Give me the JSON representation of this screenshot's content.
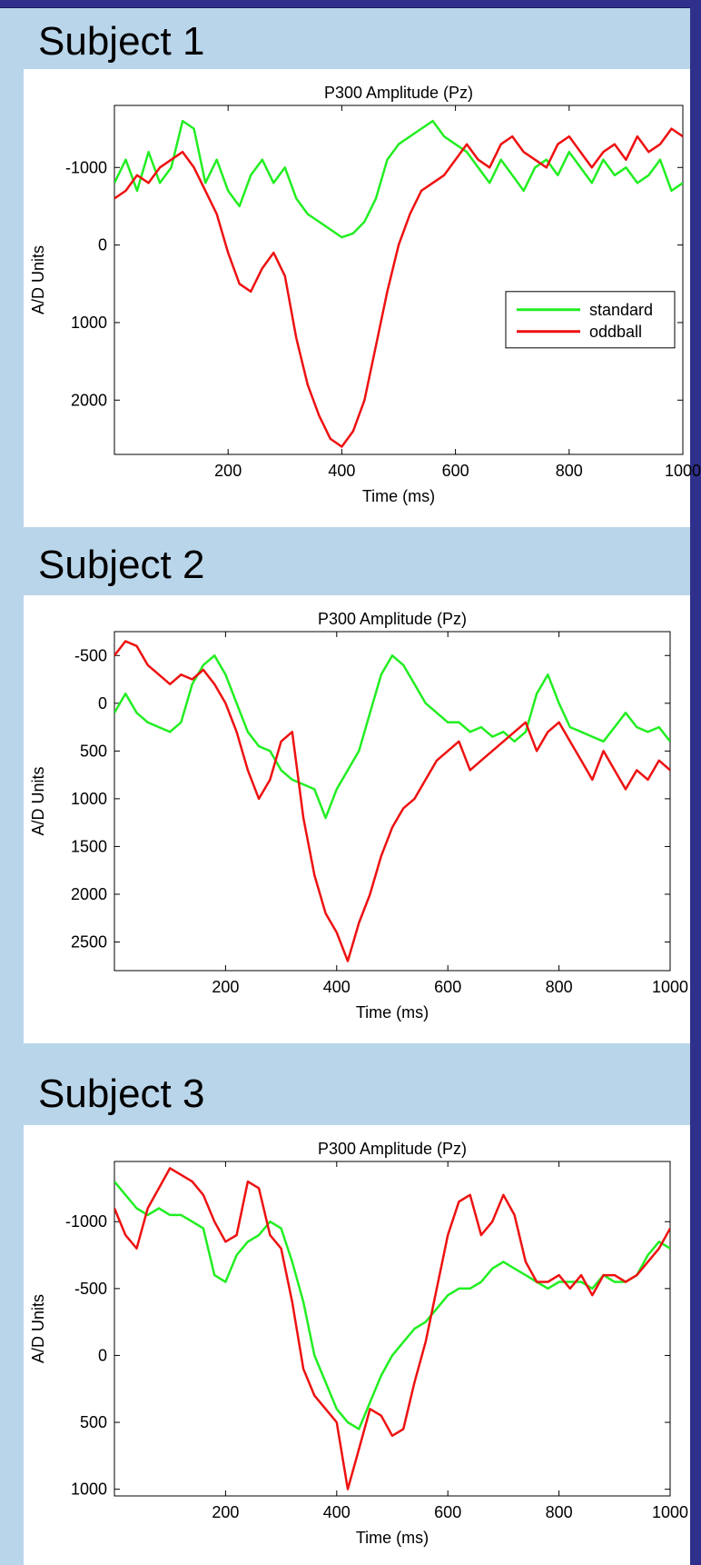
{
  "colors": {
    "standard": "#22ee22",
    "oddball": "#ee1111",
    "banner": "#b9d5ea",
    "frame": "#2f2f8c"
  },
  "legend": {
    "standard": "standard",
    "oddball": "oddball"
  },
  "chart_data": [
    {
      "type": "line",
      "subject": "Subject 1",
      "title": "P300 Amplitude (Pz)",
      "xlabel": "Time (ms)",
      "ylabel": "A/D Units",
      "xlim": [
        0,
        1000
      ],
      "ylim": [
        -1800,
        2700
      ],
      "y_reversed": true,
      "xticks": [
        200,
        400,
        600,
        800,
        1000
      ],
      "yticks": [
        -1000,
        0,
        1000,
        2000
      ],
      "legend": true,
      "legend_position": "right",
      "x": [
        0,
        20,
        40,
        60,
        80,
        100,
        120,
        140,
        160,
        180,
        200,
        220,
        240,
        260,
        280,
        300,
        320,
        340,
        360,
        380,
        400,
        420,
        440,
        460,
        480,
        500,
        520,
        540,
        560,
        580,
        600,
        620,
        640,
        660,
        680,
        700,
        720,
        740,
        760,
        780,
        800,
        820,
        840,
        860,
        880,
        900,
        920,
        940,
        960,
        980,
        1000
      ],
      "series": [
        {
          "name": "standard",
          "values": [
            -800,
            -1100,
            -700,
            -1200,
            -800,
            -1000,
            -1600,
            -1500,
            -800,
            -1100,
            -700,
            -500,
            -900,
            -1100,
            -800,
            -1000,
            -600,
            -400,
            -300,
            -200,
            -100,
            -150,
            -300,
            -600,
            -1100,
            -1300,
            -1400,
            -1500,
            -1600,
            -1400,
            -1300,
            -1200,
            -1000,
            -800,
            -1100,
            -900,
            -700,
            -1000,
            -1100,
            -900,
            -1200,
            -1000,
            -800,
            -1100,
            -900,
            -1000,
            -800,
            -900,
            -1100,
            -700,
            -800
          ]
        },
        {
          "name": "oddball",
          "values": [
            -600,
            -700,
            -900,
            -800,
            -1000,
            -1100,
            -1200,
            -1000,
            -700,
            -400,
            100,
            500,
            600,
            300,
            100,
            400,
            1200,
            1800,
            2200,
            2500,
            2600,
            2400,
            2000,
            1300,
            600,
            0,
            -400,
            -700,
            -800,
            -900,
            -1100,
            -1300,
            -1100,
            -1000,
            -1300,
            -1400,
            -1200,
            -1100,
            -1000,
            -1300,
            -1400,
            -1200,
            -1000,
            -1200,
            -1300,
            -1100,
            -1400,
            -1200,
            -1300,
            -1500,
            -1400
          ]
        }
      ]
    },
    {
      "type": "line",
      "subject": "Subject 2",
      "title": "P300 Amplitude (Pz)",
      "xlabel": "Time (ms)",
      "ylabel": "A/D Units",
      "xlim": [
        0,
        1000
      ],
      "ylim": [
        -750,
        2800
      ],
      "y_reversed": true,
      "xticks": [
        200,
        400,
        600,
        800,
        1000
      ],
      "yticks": [
        -500,
        0,
        500,
        1000,
        1500,
        2000,
        2500
      ],
      "legend": false,
      "x": [
        0,
        20,
        40,
        60,
        80,
        100,
        120,
        140,
        160,
        180,
        200,
        220,
        240,
        260,
        280,
        300,
        320,
        340,
        360,
        380,
        400,
        420,
        440,
        460,
        480,
        500,
        520,
        540,
        560,
        580,
        600,
        620,
        640,
        660,
        680,
        700,
        720,
        740,
        760,
        780,
        800,
        820,
        840,
        860,
        880,
        900,
        920,
        940,
        960,
        980,
        1000
      ],
      "series": [
        {
          "name": "standard",
          "values": [
            100,
            -100,
            100,
            200,
            250,
            300,
            200,
            -200,
            -400,
            -500,
            -300,
            0,
            300,
            450,
            500,
            700,
            800,
            850,
            900,
            1200,
            900,
            700,
            500,
            100,
            -300,
            -500,
            -400,
            -200,
            0,
            100,
            200,
            200,
            300,
            250,
            350,
            300,
            400,
            300,
            -100,
            -300,
            0,
            250,
            300,
            350,
            400,
            250,
            100,
            250,
            300,
            250,
            400
          ]
        },
        {
          "name": "oddball",
          "values": [
            -500,
            -650,
            -600,
            -400,
            -300,
            -200,
            -300,
            -250,
            -350,
            -200,
            0,
            300,
            700,
            1000,
            800,
            400,
            300,
            1200,
            1800,
            2200,
            2400,
            2700,
            2300,
            2000,
            1600,
            1300,
            1100,
            1000,
            800,
            600,
            500,
            400,
            700,
            600,
            500,
            400,
            300,
            200,
            500,
            300,
            200,
            400,
            600,
            800,
            500,
            700,
            900,
            700,
            800,
            600,
            700
          ]
        }
      ]
    },
    {
      "type": "line",
      "subject": "Subject 3",
      "title": "P300 Amplitude (Pz)",
      "xlabel": "Time (ms)",
      "ylabel": "A/D Units",
      "xlim": [
        0,
        1000
      ],
      "ylim": [
        -1450,
        1050
      ],
      "y_reversed": true,
      "xticks": [
        200,
        400,
        600,
        800,
        1000
      ],
      "yticks": [
        -1000,
        -500,
        0,
        500,
        1000
      ],
      "legend": false,
      "x": [
        0,
        20,
        40,
        60,
        80,
        100,
        120,
        140,
        160,
        180,
        200,
        220,
        240,
        260,
        280,
        300,
        320,
        340,
        360,
        380,
        400,
        420,
        440,
        460,
        480,
        500,
        520,
        540,
        560,
        580,
        600,
        620,
        640,
        660,
        680,
        700,
        720,
        740,
        760,
        780,
        800,
        820,
        840,
        860,
        880,
        900,
        920,
        940,
        960,
        980,
        1000
      ],
      "series": [
        {
          "name": "standard",
          "values": [
            -1300,
            -1200,
            -1100,
            -1050,
            -1100,
            -1050,
            -1050,
            -1000,
            -950,
            -600,
            -550,
            -750,
            -850,
            -900,
            -1000,
            -950,
            -700,
            -400,
            0,
            200,
            400,
            500,
            550,
            350,
            150,
            0,
            -100,
            -200,
            -250,
            -350,
            -450,
            -500,
            -500,
            -550,
            -650,
            -700,
            -650,
            -600,
            -550,
            -500,
            -550,
            -550,
            -550,
            -500,
            -600,
            -550,
            -550,
            -600,
            -750,
            -850,
            -800
          ]
        },
        {
          "name": "oddball",
          "values": [
            -1100,
            -900,
            -800,
            -1100,
            -1250,
            -1400,
            -1350,
            -1300,
            -1200,
            -1000,
            -850,
            -900,
            -1300,
            -1250,
            -900,
            -800,
            -400,
            100,
            300,
            400,
            500,
            1000,
            700,
            400,
            450,
            600,
            550,
            200,
            -100,
            -500,
            -900,
            -1150,
            -1200,
            -900,
            -1000,
            -1200,
            -1050,
            -700,
            -550,
            -550,
            -600,
            -500,
            -600,
            -450,
            -600,
            -600,
            -550,
            -600,
            -700,
            -800,
            -950
          ]
        }
      ]
    }
  ]
}
